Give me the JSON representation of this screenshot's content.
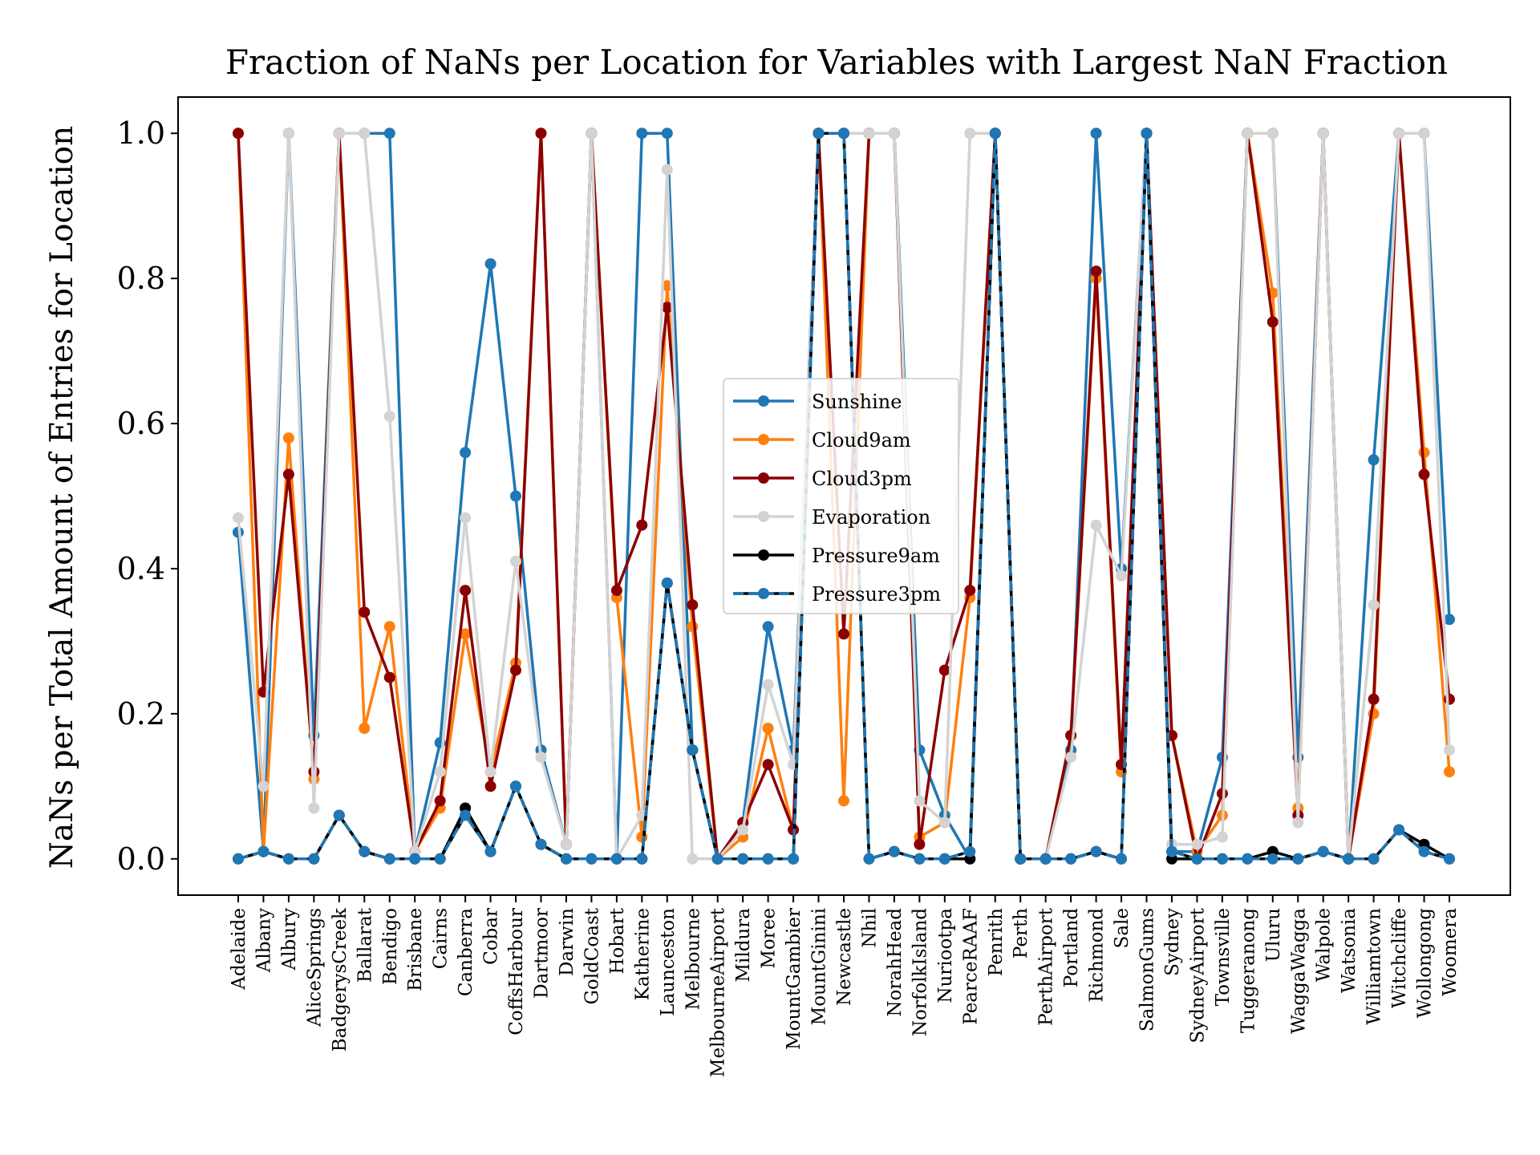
{
  "chart_data": {
    "type": "line",
    "title": "Fraction of NaNs per Location for Variables with Largest NaN Fraction",
    "xlabel": "",
    "ylabel": "NaNs per Total Amount of Entries for Location",
    "ylim": [
      -0.05,
      1.05
    ],
    "yticks": [
      "0.0",
      "0.2",
      "0.4",
      "0.6",
      "0.8",
      "1.0"
    ],
    "grid": false,
    "legend_position": "center",
    "categories": [
      "Adelaide",
      "Albany",
      "Albury",
      "AliceSprings",
      "BadgerysCreek",
      "Ballarat",
      "Bendigo",
      "Brisbane",
      "Cairns",
      "Canberra",
      "Cobar",
      "CoffsHarbour",
      "Dartmoor",
      "Darwin",
      "GoldCoast",
      "Hobart",
      "Katherine",
      "Launceston",
      "Melbourne",
      "MelbourneAirport",
      "Mildura",
      "Moree",
      "MountGambier",
      "MountGinini",
      "Newcastle",
      "Nhil",
      "NorahHead",
      "NorfolkIsland",
      "Nuriootpa",
      "PearceRAAF",
      "Penrith",
      "Perth",
      "PerthAirport",
      "Portland",
      "Richmond",
      "Sale",
      "SalmonGums",
      "Sydney",
      "SydneyAirport",
      "Townsville",
      "Tuggeranong",
      "Uluru",
      "WaggaWagga",
      "Walpole",
      "Watsonia",
      "Williamtown",
      "Witchcliffe",
      "Wollongong",
      "Woomera"
    ],
    "series": [
      {
        "name": "Sunshine",
        "color": "#1f77b4",
        "dashed": false,
        "values": [
          0.45,
          0.01,
          1.0,
          0.17,
          1.0,
          1.0,
          1.0,
          0.01,
          0.16,
          0.56,
          0.82,
          0.5,
          0.15,
          0.02,
          1.0,
          0.0,
          1.0,
          1.0,
          0.15,
          0.0,
          0.05,
          0.32,
          0.15,
          1.0,
          1.0,
          1.0,
          1.0,
          0.15,
          0.06,
          0.0,
          1.0,
          0.0,
          0.0,
          0.15,
          1.0,
          0.4,
          1.0,
          0.01,
          0.01,
          0.14,
          1.0,
          1.0,
          0.14,
          1.0,
          0.0,
          0.55,
          1.0,
          1.0,
          0.33
        ]
      },
      {
        "name": "Cloud9am",
        "color": "#ff7f0e",
        "dashed": false,
        "values": [
          1.0,
          0.01,
          0.58,
          0.11,
          1.0,
          0.18,
          0.32,
          0.01,
          0.07,
          0.31,
          0.12,
          0.27,
          1.0,
          0.02,
          1.0,
          0.36,
          0.03,
          0.79,
          0.32,
          0.0,
          0.03,
          0.18,
          0.04,
          1.0,
          0.08,
          1.0,
          1.0,
          0.03,
          0.05,
          0.36,
          1.0,
          0.0,
          0.0,
          0.17,
          0.8,
          0.12,
          1.0,
          0.17,
          0.01,
          0.06,
          1.0,
          0.78,
          0.07,
          1.0,
          0.0,
          0.2,
          1.0,
          0.56,
          0.12
        ]
      },
      {
        "name": "Cloud3pm",
        "color": "#8b0000",
        "dashed": false,
        "values": [
          1.0,
          0.23,
          0.53,
          0.12,
          1.0,
          0.34,
          0.25,
          0.01,
          0.08,
          0.37,
          0.1,
          0.26,
          1.0,
          0.02,
          1.0,
          0.37,
          0.46,
          0.76,
          0.35,
          0.0,
          0.05,
          0.13,
          0.04,
          1.0,
          0.31,
          1.0,
          1.0,
          0.02,
          0.26,
          0.37,
          1.0,
          0.0,
          0.0,
          0.17,
          0.81,
          0.13,
          1.0,
          0.17,
          0.0,
          0.09,
          1.0,
          0.74,
          0.06,
          1.0,
          0.0,
          0.22,
          1.0,
          0.53,
          0.22
        ]
      },
      {
        "name": "Evaporation",
        "color": "#d3d3d3",
        "dashed": false,
        "values": [
          0.47,
          0.1,
          1.0,
          0.07,
          1.0,
          1.0,
          0.61,
          0.01,
          0.12,
          0.47,
          0.12,
          0.41,
          0.14,
          0.02,
          1.0,
          0.0,
          0.06,
          0.95,
          0.0,
          0.0,
          0.04,
          0.24,
          0.13,
          1.0,
          1.0,
          1.0,
          1.0,
          0.08,
          0.05,
          1.0,
          1.0,
          0.0,
          0.0,
          0.14,
          0.46,
          0.39,
          1.0,
          0.02,
          0.02,
          0.03,
          1.0,
          1.0,
          0.05,
          1.0,
          0.0,
          0.35,
          1.0,
          1.0,
          0.15
        ]
      },
      {
        "name": "Pressure9am",
        "color": "#000000",
        "dashed": false,
        "values": [
          0.0,
          0.01,
          0.0,
          0.0,
          0.06,
          0.01,
          0.0,
          0.0,
          0.0,
          0.07,
          0.01,
          0.1,
          0.02,
          0.0,
          0.0,
          0.0,
          0.0,
          0.38,
          0.15,
          0.0,
          0.0,
          0.0,
          0.0,
          1.0,
          1.0,
          0.0,
          0.01,
          0.0,
          0.0,
          0.0,
          1.0,
          0.0,
          0.0,
          0.0,
          0.01,
          0.0,
          1.0,
          0.0,
          0.0,
          0.0,
          0.0,
          0.01,
          0.0,
          0.01,
          0.0,
          0.0,
          0.04,
          0.02,
          0.0
        ]
      },
      {
        "name": "Pressure3pm",
        "color": "#1f77b4",
        "dashed": true,
        "values": [
          0.0,
          0.01,
          0.0,
          0.0,
          0.06,
          0.01,
          0.0,
          0.0,
          0.0,
          0.06,
          0.01,
          0.1,
          0.02,
          0.0,
          0.0,
          0.0,
          0.0,
          0.38,
          0.15,
          0.0,
          0.0,
          0.0,
          0.0,
          1.0,
          1.0,
          0.0,
          0.01,
          0.0,
          0.0,
          0.01,
          1.0,
          0.0,
          0.0,
          0.0,
          0.01,
          0.0,
          1.0,
          0.01,
          0.0,
          0.0,
          0.0,
          0.0,
          0.0,
          0.01,
          0.0,
          0.0,
          0.04,
          0.01,
          0.0
        ]
      }
    ]
  }
}
